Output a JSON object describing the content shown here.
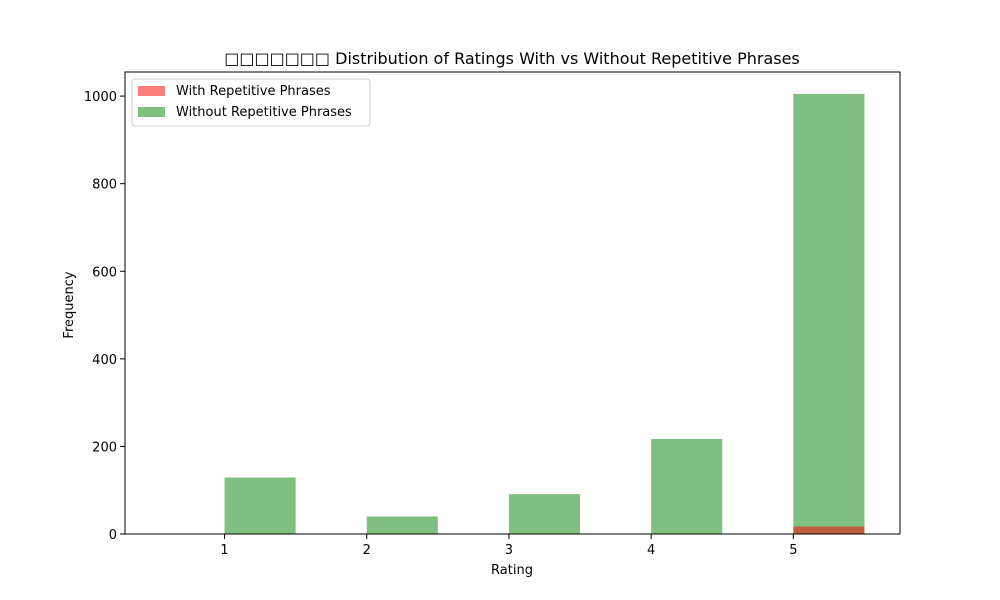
{
  "chart_data": {
    "type": "bar",
    "title": "□□□□□□□ Distribution of Ratings With vs Without Repetitive Phrases",
    "xlabel": "Rating",
    "ylabel": "Frequency",
    "x_ticks": [
      "1",
      "2",
      "3",
      "4",
      "5"
    ],
    "y_ticks": [
      "0",
      "200",
      "400",
      "600",
      "800",
      "1000"
    ],
    "xlim": [
      0.3,
      5.75
    ],
    "ylim": [
      0,
      1055
    ],
    "bar_width": 0.5,
    "legend_position": "top-left",
    "series": [
      {
        "name": "Without Repetitive Phrases",
        "color": "#008000",
        "opacity": 0.5,
        "bars": [
          {
            "x": 1,
            "value": 129
          },
          {
            "x": 2,
            "value": 40
          },
          {
            "x": 3,
            "value": 91
          },
          {
            "x": 4,
            "value": 217
          },
          {
            "x": 5,
            "value": 1005
          }
        ]
      },
      {
        "name": "With Repetitive Phrases",
        "color": "#ff0000",
        "opacity": 0.5,
        "bars": [
          {
            "x": 1,
            "value": 0
          },
          {
            "x": 2,
            "value": 0
          },
          {
            "x": 3,
            "value": 0
          },
          {
            "x": 4,
            "value": 0
          },
          {
            "x": 5,
            "value": 17
          }
        ]
      }
    ],
    "legend_order": [
      "With Repetitive Phrases",
      "Without Repetitive Phrases"
    ]
  }
}
